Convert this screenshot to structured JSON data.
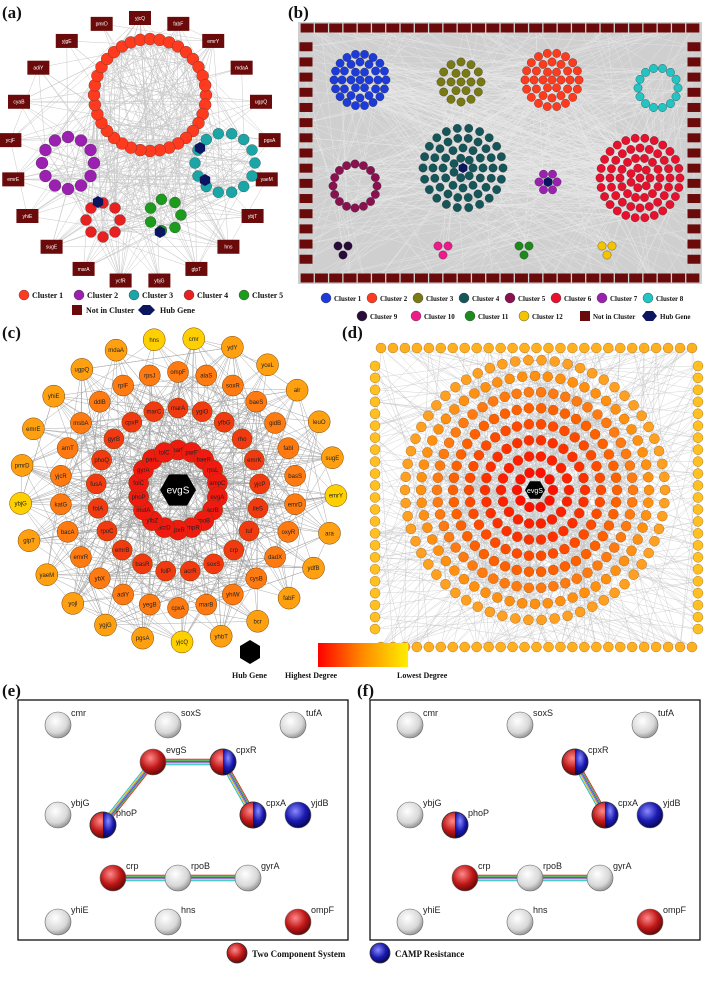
{
  "panels": {
    "a": "(a)",
    "b": "(b)",
    "c": "(c)",
    "d": "(d)",
    "e": "(e)",
    "f": "(f)"
  },
  "panel_a": {
    "outer": [
      "yjcQ",
      "fabF",
      "emrY",
      "mdaA",
      "ugpQ",
      "pgsA",
      "yaeM",
      "ybjT",
      "hns",
      "glpT",
      "ybjG",
      "ycfR",
      "marA",
      "sugE",
      "yhiE",
      "emrE",
      "ycjF",
      "cyaB",
      "adiY",
      "yjgE",
      "pmrD"
    ],
    "legend": [
      {
        "label": "Cluster 1",
        "color": "#ff3b1f"
      },
      {
        "label": "Cluster 2",
        "color": "#9b1fb0"
      },
      {
        "label": "Cluster 3",
        "color": "#1aa6a6"
      },
      {
        "label": "Cluster 4",
        "color": "#e82020"
      },
      {
        "label": "Cluster 5",
        "color": "#1c9b1c"
      }
    ],
    "not_in_cluster": "Not in Cluster",
    "hub": "Hub Gene"
  },
  "panel_b": {
    "legend_row1": [
      {
        "label": "Cluster 1",
        "color": "#1d3bd8"
      },
      {
        "label": "Cluster 2",
        "color": "#ff3b1f"
      },
      {
        "label": "Cluster 3",
        "color": "#7a7a14"
      },
      {
        "label": "Cluster 4",
        "color": "#14565a"
      },
      {
        "label": "Cluster 5",
        "color": "#8a1050"
      },
      {
        "label": "Cluster 6",
        "color": "#e8102c"
      },
      {
        "label": "Cluster 7",
        "color": "#9b1fb0"
      },
      {
        "label": "Cluster 8",
        "color": "#22c4c4"
      }
    ],
    "legend_row2": [
      {
        "label": "Cluster 9",
        "color": "#2a0a3a"
      },
      {
        "label": "Cluster 10",
        "color": "#ee1a8c"
      },
      {
        "label": "Cluster 11",
        "color": "#1c8a1c"
      },
      {
        "label": "Cluster 12",
        "color": "#f5c400"
      }
    ],
    "not_in_cluster": "Not in Cluster",
    "hub": "Hub Gene"
  },
  "panel_c": {
    "hub": "evgS",
    "inner": [
      "marR",
      "parE",
      "baeR",
      "rpsL",
      "ampC",
      "evgA",
      "acrB",
      "rpoB",
      "ompR",
      "cpxR",
      "acrD",
      "yfbZ",
      "mutA",
      "phoP",
      "folC",
      "gyrA",
      "parC",
      "tolC"
    ],
    "middle": [
      "ompF",
      "alaS",
      "soxR",
      "baeS",
      "gidB",
      "fabI",
      "basS",
      "emrD",
      "oxyR",
      "dadX",
      "cysB",
      "yhiW",
      "marB",
      "cpxA",
      "yegB",
      "adiY",
      "ybX",
      "emrR",
      "bacA",
      "katG",
      "yjcR",
      "arnT",
      "msbA",
      "ddlB",
      "rplF",
      "rpsJ",
      "cmr",
      "ydY",
      "yceL",
      "alr",
      "leuO",
      "sugE",
      "emrY",
      "ara",
      "ydfB",
      "fabF",
      "bcr",
      "yhbT",
      "yjcQ",
      "pgsA",
      "ygjG",
      "yojl",
      "yaeM",
      "glpT",
      "ybjG",
      "pmrD",
      "emrE",
      "yhiE",
      "ugpQ",
      "mdaA",
      "hns"
    ],
    "ring2": [
      "marA",
      "ygiO",
      "yfbG",
      "rho",
      "emrK",
      "yjcP",
      "ileS",
      "tuf",
      "crp",
      "soxS",
      "acrR",
      "folP",
      "basR",
      "emrB",
      "rpoC",
      "folA",
      "fusA",
      "phoQ",
      "gyrB",
      "cpxP",
      "marC"
    ]
  },
  "gradient": {
    "hub": "Hub Gene",
    "high": "Highest Degree",
    "low": "Lowest Degree"
  },
  "string_e": {
    "nodes": [
      {
        "id": "cmr",
        "label": "cmr",
        "fill": "plain"
      },
      {
        "id": "soxS",
        "label": "soxS",
        "fill": "plain"
      },
      {
        "id": "tufA",
        "label": "tufA",
        "fill": "plain"
      },
      {
        "id": "evgS",
        "label": "evgS",
        "fill": "red"
      },
      {
        "id": "cpxR",
        "label": "cpxR",
        "fill": "redblue"
      },
      {
        "id": "ybjG",
        "label": "ybjG",
        "fill": "plain"
      },
      {
        "id": "phoP",
        "label": "phoP",
        "fill": "redblue"
      },
      {
        "id": "cpxA",
        "label": "cpxA",
        "fill": "redblue"
      },
      {
        "id": "yjdB",
        "label": "yjdB",
        "fill": "blue"
      },
      {
        "id": "crp",
        "label": "crp",
        "fill": "red"
      },
      {
        "id": "rpoB",
        "label": "rpoB",
        "fill": "plain"
      },
      {
        "id": "gyrA",
        "label": "gyrA",
        "fill": "plain"
      },
      {
        "id": "yhiE",
        "label": "yhiE",
        "fill": "plain"
      },
      {
        "id": "hns",
        "label": "hns",
        "fill": "plain"
      },
      {
        "id": "ompF",
        "label": "ompF",
        "fill": "red"
      }
    ]
  },
  "string_legend": {
    "tcs": "Two Component System",
    "tcs_color": "#b01818",
    "camp": "CAMP Resistance",
    "camp_color": "#1a1aa0"
  }
}
